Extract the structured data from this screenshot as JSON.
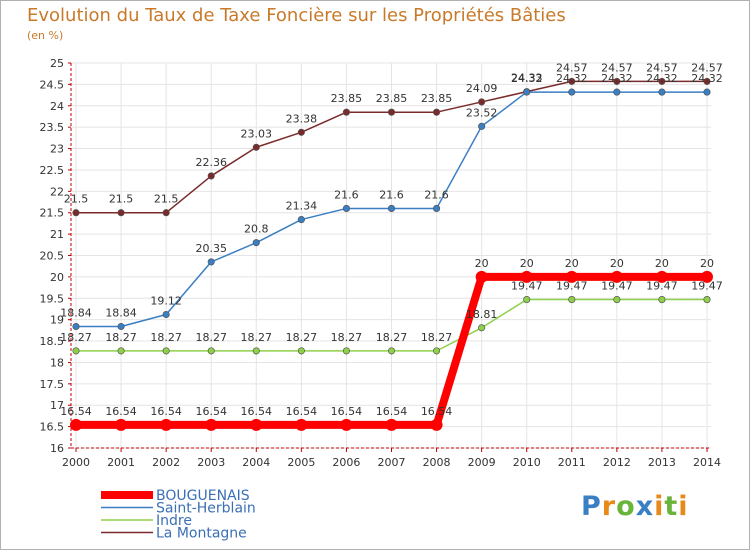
{
  "header": {
    "title": "Evolution du Taux de Taxe Foncière sur les Propriétés Bâties",
    "unit": "(en %)"
  },
  "logo": {
    "letters": [
      "P",
      "r",
      "o",
      "x",
      "i",
      "t",
      "i"
    ],
    "colors": [
      "#3a7fc4",
      "#e88a1a",
      "#69b43a",
      "#3a7fc4",
      "#e88a1a",
      "#69b43a",
      "#e88a1a"
    ]
  },
  "chart_data": {
    "type": "line",
    "title": "Evolution du Taux de Taxe Foncière sur les Propriétés Bâties",
    "ylabel": "(en %)",
    "xlabel": "",
    "x": [
      "2000",
      "2001",
      "2002",
      "2003",
      "2004",
      "2005",
      "2006",
      "2007",
      "2008",
      "2009",
      "2010",
      "2011",
      "2012",
      "2013",
      "2014"
    ],
    "ylim": [
      16,
      25
    ],
    "yticks": [
      "16",
      "16.5",
      "17",
      "17.5",
      "18",
      "18.5",
      "19",
      "19.5",
      "20",
      "20.5",
      "21",
      "21.5",
      "22",
      "22.5",
      "23",
      "23.5",
      "24",
      "24.5",
      "25"
    ],
    "grid": true,
    "legend": "bottom-left",
    "series": [
      {
        "name": "BOUGUENAIS",
        "color": "#ff0000",
        "values": [
          16.54,
          16.54,
          16.54,
          16.54,
          16.54,
          16.54,
          16.54,
          16.54,
          16.54,
          20,
          20,
          20,
          20,
          20,
          20
        ],
        "labels": [
          "16.54",
          "16.54",
          "16.54",
          "16.54",
          "16.54",
          "16.54",
          "16.54",
          "16.54",
          "16.54",
          "20",
          "20",
          "20",
          "20",
          "20",
          "20"
        ]
      },
      {
        "name": "Saint-Herblain",
        "color": "#3a7fc4",
        "values": [
          18.84,
          18.84,
          19.12,
          20.35,
          20.8,
          21.34,
          21.6,
          21.6,
          21.6,
          23.52,
          24.32,
          24.32,
          24.32,
          24.32,
          24.32
        ],
        "labels": [
          "18.84",
          "18.84",
          "19.12",
          "20.35",
          "20.8",
          "21.34",
          "21.6",
          "21.6",
          "21.6",
          "23.52",
          "24.32",
          "24.32",
          "24.32",
          "24.32",
          "24.32"
        ]
      },
      {
        "name": "Indre",
        "color": "#8ed04a",
        "values": [
          18.27,
          18.27,
          18.27,
          18.27,
          18.27,
          18.27,
          18.27,
          18.27,
          18.27,
          18.81,
          19.47,
          19.47,
          19.47,
          19.47,
          19.47
        ],
        "labels": [
          "18.27",
          "18.27",
          "18.27",
          "18.27",
          "18.27",
          "18.27",
          "18.27",
          "18.27",
          "18.27",
          "18.81",
          "19.47",
          "19.47",
          "19.47",
          "19.47",
          "19.47"
        ]
      },
      {
        "name": "La Montagne",
        "color": "#7a2a2a",
        "values": [
          21.5,
          21.5,
          21.5,
          22.36,
          23.03,
          23.38,
          23.85,
          23.85,
          23.85,
          24.09,
          24.33,
          24.57,
          24.57,
          24.57,
          24.57
        ],
        "labels": [
          "21.5",
          "21.5",
          "21.5",
          "22.36",
          "23.03",
          "23.38",
          "23.85",
          "23.85",
          "23.85",
          "24.09",
          "24.33",
          "24.57",
          "24.57",
          "24.57",
          "24.57"
        ]
      }
    ]
  }
}
